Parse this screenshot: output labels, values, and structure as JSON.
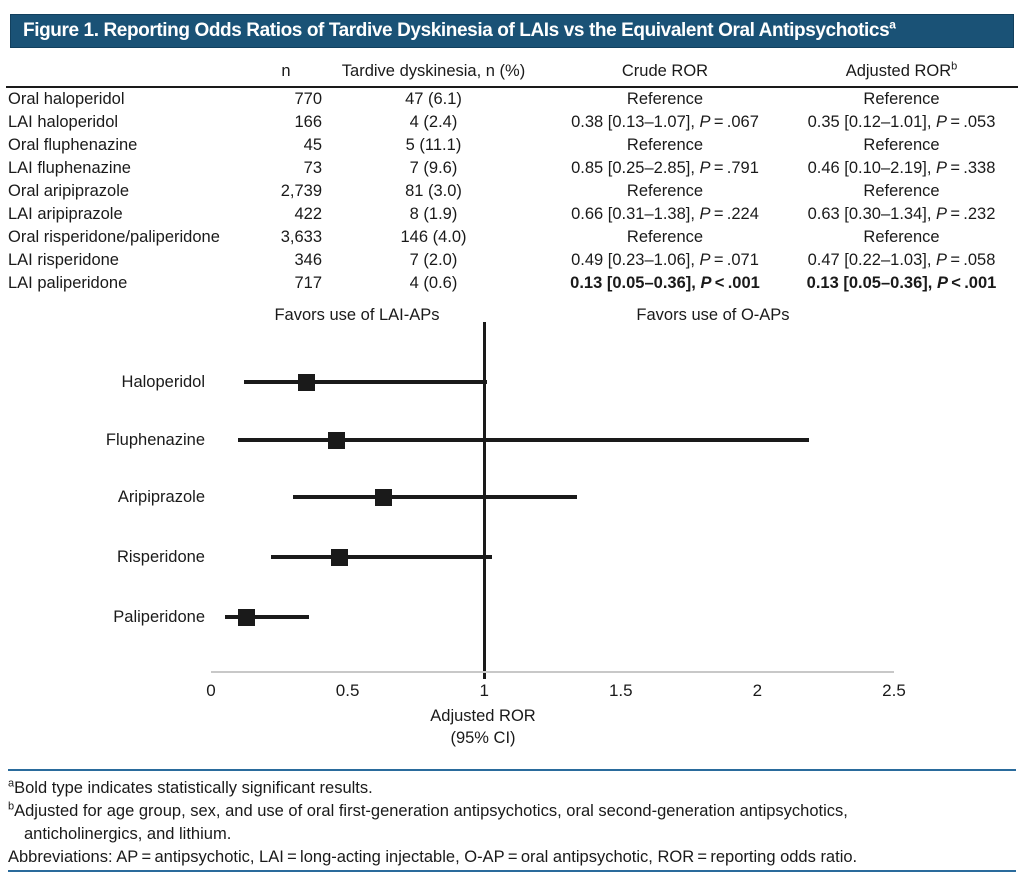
{
  "title": {
    "text": "Figure 1. Reporting Odds Ratios of Tardive Dyskinesia of LAIs vs the Equivalent Oral Antipsychotics",
    "superscript": "a"
  },
  "colors": {
    "title_bar_bg": "#1a5276",
    "title_text": "#ffffff",
    "divider_blue": "#2a6b9c",
    "ink": "#1a1a1a",
    "axis_gray": "#c8c8c8"
  },
  "table": {
    "headers": {
      "drug": "",
      "n": "n",
      "td": "Tardive dyskinesia, n (%)",
      "crude": "Crude ROR",
      "adjusted": "Adjusted ROR",
      "adjusted_sup": "b"
    },
    "rows": [
      {
        "drug": "Oral haloperidol",
        "n": "770",
        "td": "47 (6.1)",
        "crude": "Reference",
        "adjusted": "Reference",
        "bold": false
      },
      {
        "drug": "LAI haloperidol",
        "n": "166",
        "td": "4 (2.4)",
        "crude": "0.38 [0.13–1.07]",
        "crude_p": " = .067",
        "adjusted": "0.35 [0.12–1.01]",
        "adjusted_p": " = .053",
        "bold": false
      },
      {
        "drug": "Oral fluphenazine",
        "n": "45",
        "td": "5 (11.1)",
        "crude": "Reference",
        "adjusted": "Reference",
        "bold": false
      },
      {
        "drug": "LAI fluphenazine",
        "n": "73",
        "td": "7 (9.6)",
        "crude": "0.85 [0.25–2.85]",
        "crude_p": " = .791",
        "adjusted": "0.46 [0.10–2.19]",
        "adjusted_p": " = .338",
        "bold": false
      },
      {
        "drug": "Oral aripiprazole",
        "n": "2,739",
        "td": "81 (3.0)",
        "crude": "Reference",
        "adjusted": "Reference",
        "bold": false
      },
      {
        "drug": "LAI aripiprazole",
        "n": "422",
        "td": "8 (1.9)",
        "crude": "0.66 [0.31–1.38]",
        "crude_p": " = .224",
        "adjusted": "0.63 [0.30–1.34]",
        "adjusted_p": " = .232",
        "bold": false
      },
      {
        "drug": "Oral risperidone/paliperidone",
        "n": "3,633",
        "td": "146 (4.0)",
        "crude": "Reference",
        "adjusted": "Reference",
        "bold": false
      },
      {
        "drug": "LAI risperidone",
        "n": "346",
        "td": "7 (2.0)",
        "crude": "0.49 [0.23–1.06]",
        "crude_p": " = .071",
        "adjusted": "0.47 [0.22–1.03]",
        "adjusted_p": " = .058",
        "bold": false
      },
      {
        "drug": "LAI paliperidone",
        "n": "717",
        "td": "4 (0.6)",
        "crude": "0.13 [0.05–0.36]",
        "crude_p": " < .001",
        "adjusted": "0.13 [0.05–0.36]",
        "adjusted_p": " < .001",
        "bold": true
      }
    ]
  },
  "chart_data": {
    "type": "forest",
    "title": "",
    "xlabel": "Adjusted ROR",
    "xlabel_sub": "(95% CI)",
    "x_axis": {
      "ticks": [
        0,
        0.5,
        1,
        1.5,
        2,
        2.5
      ],
      "range": [
        0,
        2.5
      ],
      "reference_line": 1
    },
    "annotations": {
      "left": "Favors use of LAI-APs",
      "right": "Favors use of O-APs"
    },
    "series": [
      {
        "label": "Haloperidol",
        "value": 0.35,
        "ci_low": 0.12,
        "ci_high": 1.01
      },
      {
        "label": "Fluphenazine",
        "value": 0.46,
        "ci_low": 0.1,
        "ci_high": 2.19
      },
      {
        "label": "Aripiprazole",
        "value": 0.63,
        "ci_low": 0.3,
        "ci_high": 1.34
      },
      {
        "label": "Risperidone",
        "value": 0.47,
        "ci_low": 0.22,
        "ci_high": 1.03
      },
      {
        "label": "Paliperidone",
        "value": 0.13,
        "ci_low": 0.05,
        "ci_high": 0.36
      }
    ],
    "legend": "none",
    "grid": false
  },
  "footnotes": {
    "a": {
      "marker": "a",
      "text": "Bold type indicates statistically significant results."
    },
    "b": {
      "marker": "b",
      "line1": "Adjusted for age group, sex, and use of oral first-generation antipsychotics, oral second-generation antipsychotics,",
      "line2": "anticholinergics, and lithium."
    },
    "abbreviations": "Abbreviations: AP = antipsychotic, LAI = long-acting injectable, O-AP = oral antipsychotic, ROR = reporting odds ratio."
  }
}
